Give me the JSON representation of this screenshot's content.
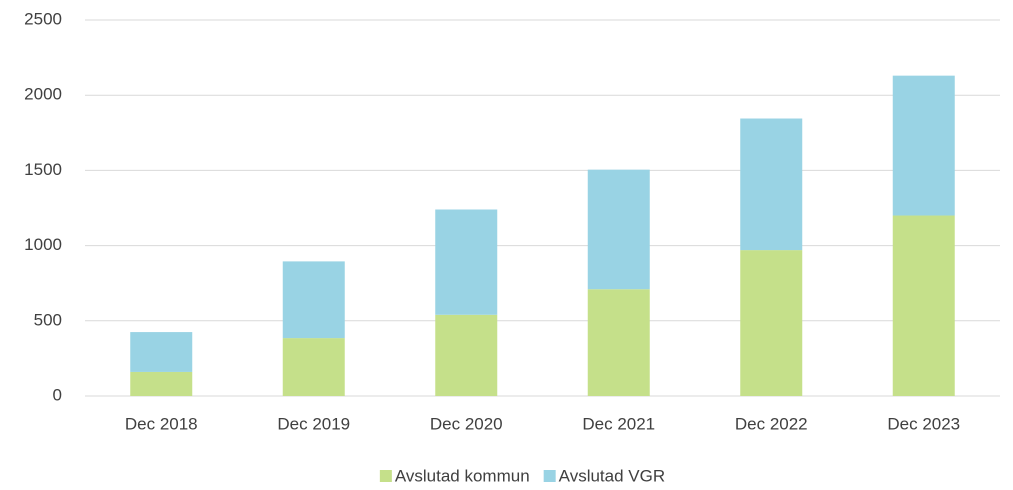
{
  "chart_data": {
    "type": "stacked_bar",
    "categories": [
      "Dec 2018",
      "Dec 2019",
      "Dec 2020",
      "Dec 2021",
      "Dec 2022",
      "Dec 2023"
    ],
    "series": [
      {
        "name": "Avslutad kommun",
        "color": "#c5e08a",
        "values": [
          160,
          385,
          540,
          710,
          970,
          1200
        ]
      },
      {
        "name": "Avslutad VGR",
        "color": "#99d3e4",
        "values": [
          265,
          510,
          700,
          795,
          875,
          930
        ]
      }
    ],
    "ylim": [
      0,
      2500
    ],
    "yticks": [
      0,
      500,
      1000,
      1500,
      2000,
      2500
    ],
    "grid": true,
    "legend": "bottom"
  }
}
